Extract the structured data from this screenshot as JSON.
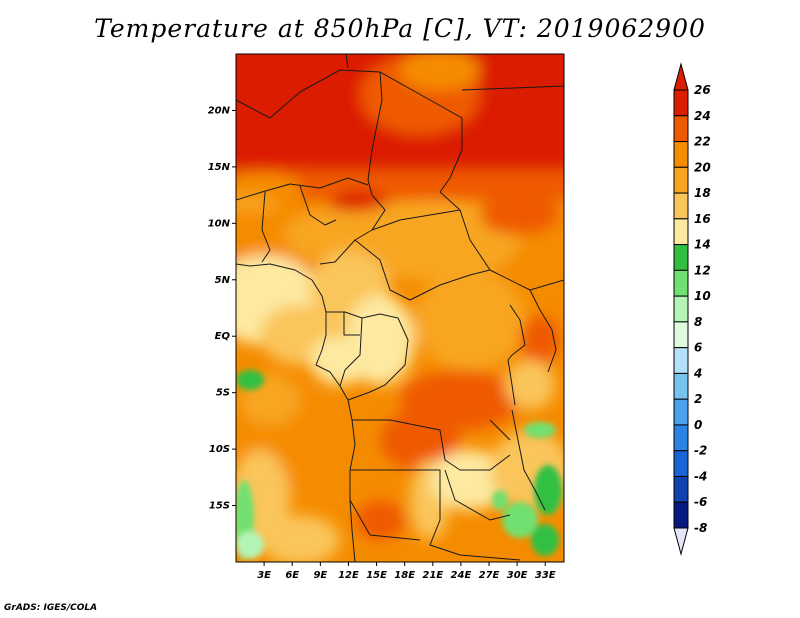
{
  "title": "Temperature at 850hPa [C], VT: 2019062900",
  "credit": "GrADS: IGES/COLA",
  "map": {
    "lon_range": [
      0,
      35
    ],
    "lat_range": [
      -20,
      25
    ],
    "lat_ticks": [
      {
        "value": 20,
        "label": "20N"
      },
      {
        "value": 15,
        "label": "15N"
      },
      {
        "value": 10,
        "label": "10N"
      },
      {
        "value": 5,
        "label": "5N"
      },
      {
        "value": 0,
        "label": "EQ"
      },
      {
        "value": -5,
        "label": "5S"
      },
      {
        "value": -10,
        "label": "10S"
      },
      {
        "value": -15,
        "label": "15S"
      }
    ],
    "lon_ticks": [
      {
        "value": 3,
        "label": "3E"
      },
      {
        "value": 6,
        "label": "6E"
      },
      {
        "value": 9,
        "label": "9E"
      },
      {
        "value": 12,
        "label": "12E"
      },
      {
        "value": 15,
        "label": "15E"
      },
      {
        "value": 18,
        "label": "18E"
      },
      {
        "value": 21,
        "label": "21E"
      },
      {
        "value": 24,
        "label": "24E"
      },
      {
        "value": 27,
        "label": "27E"
      },
      {
        "value": 30,
        "label": "30E"
      },
      {
        "value": 33,
        "label": "33E"
      }
    ]
  },
  "colorbar": {
    "levels": [
      {
        "label": "26",
        "color": "#a50000"
      },
      {
        "label": "24",
        "color": "#dc1e00"
      },
      {
        "label": "22",
        "color": "#ef5a00"
      },
      {
        "label": "20",
        "color": "#f58c00"
      },
      {
        "label": "18",
        "color": "#f8a620"
      },
      {
        "label": "16",
        "color": "#fac55a"
      },
      {
        "label": "14",
        "color": "#fde9a0"
      },
      {
        "label": "12",
        "color": "#33c042"
      },
      {
        "label": "10",
        "color": "#72e070"
      },
      {
        "label": "8",
        "color": "#b4f4b4"
      },
      {
        "label": "6",
        "color": "#e0fae0"
      },
      {
        "label": "4",
        "color": "#b4e1f9"
      },
      {
        "label": "2",
        "color": "#78c2f0"
      },
      {
        "label": "0",
        "color": "#4ba2ec"
      },
      {
        "label": "-2",
        "color": "#2a84e5"
      },
      {
        "label": "-4",
        "color": "#1a64d6"
      },
      {
        "label": "-6",
        "color": "#1042b0"
      },
      {
        "label": "-8",
        "color": "#081a80"
      }
    ],
    "top_color": "#dc1e00",
    "bottom_color": "#e6e6fa"
  }
}
